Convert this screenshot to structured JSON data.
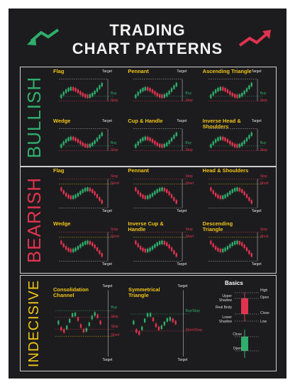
{
  "title": {
    "line1": "TRADING",
    "line2": "CHART PATTERNS"
  },
  "colors": {
    "bull": "#2fae6c",
    "bear": "#e0334f",
    "neutral": "#f0c419",
    "bg": "#1c1c1e"
  },
  "icons": {
    "left": "green-arrow-down-icon",
    "right": "red-arrow-up-icon"
  },
  "sections": [
    {
      "name": "BULLISH",
      "patterns": [
        {
          "name": "Flag",
          "labels": [
            "Target",
            "Buy",
            "Stop"
          ]
        },
        {
          "name": "Pennant",
          "labels": [
            "Target",
            "Buy",
            "Stop"
          ]
        },
        {
          "name": "Ascending Triangle",
          "labels": [
            "Target",
            "Buy",
            "Stop"
          ]
        },
        {
          "name": "Wedge",
          "labels": [
            "Target",
            "Buy",
            "Stop"
          ]
        },
        {
          "name": "Cup & Handle",
          "labels": [
            "Target",
            "Buy",
            "Stop"
          ]
        },
        {
          "name": "Inverse Head & Shoulders",
          "labels": [
            "Target",
            "Buy",
            "Stop"
          ]
        }
      ]
    },
    {
      "name": "BEARISH",
      "patterns": [
        {
          "name": "Flag",
          "labels": [
            "Stop",
            "Short",
            "Target"
          ]
        },
        {
          "name": "Pennant",
          "labels": [
            "Stop",
            "Short",
            "Target"
          ]
        },
        {
          "name": "Head & Shoulders",
          "labels": [
            "Stop",
            "Short",
            "Target"
          ]
        },
        {
          "name": "Wedge",
          "labels": [
            "Stop",
            "Short",
            "Target"
          ]
        },
        {
          "name": "Inverse Cup & Handle",
          "labels": [
            "Stop",
            "Short",
            "Target"
          ]
        },
        {
          "name": "Descending Triangle",
          "labels": [
            "Stop",
            "Short",
            "Target"
          ]
        }
      ]
    },
    {
      "name": "INDECISIVE",
      "patterns": [
        {
          "name": "Consolidation Channel",
          "labels": [
            "Target",
            "Buy",
            "Stop",
            "Stop",
            "Short",
            "Target"
          ]
        },
        {
          "name": "Symmetrical Triangle",
          "labels": [
            "Target",
            "Buy/Stop",
            "Short/Stop",
            "Target"
          ]
        }
      ],
      "basics": {
        "title": "Basics",
        "labels": [
          "Upper Shadow",
          "Real Body",
          "Lower Shadow",
          "High",
          "Open",
          "Close",
          "Low",
          "Close",
          "Open"
        ]
      }
    }
  ]
}
